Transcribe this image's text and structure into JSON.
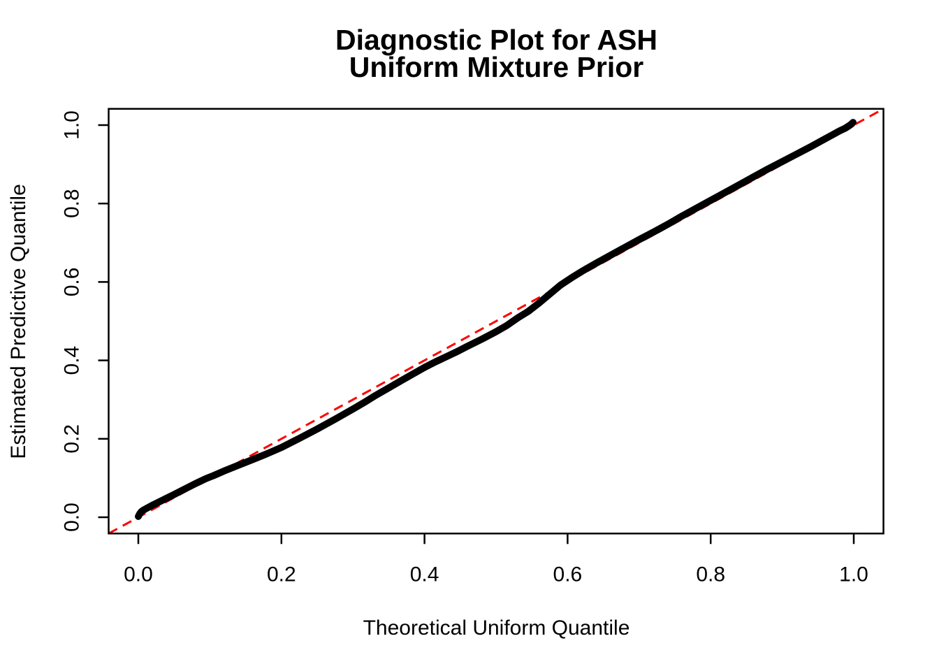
{
  "title": {
    "line1": "Diagnostic Plot for ASH",
    "line2": "Uniform Mixture Prior"
  },
  "colors": {
    "background": "#ffffff",
    "curve": "#000000",
    "reference_line": "#ff0000",
    "axis": "#000000",
    "text": "#000000"
  },
  "axes": {
    "x": {
      "label": "Theoretical Uniform Quantile",
      "ticks": [
        0.0,
        0.2,
        0.4,
        0.6,
        0.8,
        1.0
      ],
      "tick_labels": [
        "0.0",
        "0.2",
        "0.4",
        "0.6",
        "0.8",
        "1.0"
      ],
      "range": [
        -0.0415,
        1.0415
      ]
    },
    "y": {
      "label": "Estimated Predictive Quantile",
      "ticks": [
        0.0,
        0.2,
        0.4,
        0.6,
        0.8,
        1.0
      ],
      "tick_labels": [
        "0.0",
        "0.2",
        "0.4",
        "0.6",
        "0.8",
        "1.0"
      ],
      "range": [
        -0.0415,
        1.0415
      ]
    }
  },
  "chart_data": {
    "type": "line",
    "title": "Diagnostic Plot for ASH\nUniform Mixture Prior",
    "xlabel": "Theoretical Uniform Quantile",
    "ylabel": "Estimated Predictive Quantile",
    "xlim": [
      0,
      1
    ],
    "ylim": [
      0,
      1
    ],
    "grid": false,
    "legend": "none",
    "series": [
      {
        "name": "estimated-predictive-quantiles",
        "style": "thick-black-point-curve",
        "color": "#000000",
        "points": [
          [
            0.0,
            0.002
          ],
          [
            0.002,
            0.009
          ],
          [
            0.004,
            0.014
          ],
          [
            0.007,
            0.018
          ],
          [
            0.01,
            0.021
          ],
          [
            0.015,
            0.026
          ],
          [
            0.02,
            0.031
          ],
          [
            0.03,
            0.04
          ],
          [
            0.04,
            0.049
          ],
          [
            0.05,
            0.058
          ],
          [
            0.065,
            0.072
          ],
          [
            0.08,
            0.086
          ],
          [
            0.095,
            0.099
          ],
          [
            0.105,
            0.106
          ],
          [
            0.12,
            0.118
          ],
          [
            0.135,
            0.129
          ],
          [
            0.15,
            0.14
          ],
          [
            0.165,
            0.151
          ],
          [
            0.18,
            0.162
          ],
          [
            0.2,
            0.178
          ],
          [
            0.225,
            0.201
          ],
          [
            0.25,
            0.225
          ],
          [
            0.275,
            0.25
          ],
          [
            0.3,
            0.276
          ],
          [
            0.315,
            0.292
          ],
          [
            0.33,
            0.309
          ],
          [
            0.35,
            0.33
          ],
          [
            0.37,
            0.351
          ],
          [
            0.4,
            0.382
          ],
          [
            0.415,
            0.396
          ],
          [
            0.43,
            0.409
          ],
          [
            0.445,
            0.422
          ],
          [
            0.46,
            0.436
          ],
          [
            0.48,
            0.454
          ],
          [
            0.5,
            0.473
          ],
          [
            0.515,
            0.489
          ],
          [
            0.53,
            0.508
          ],
          [
            0.545,
            0.525
          ],
          [
            0.56,
            0.546
          ],
          [
            0.575,
            0.569
          ],
          [
            0.59,
            0.592
          ],
          [
            0.605,
            0.61
          ],
          [
            0.62,
            0.627
          ],
          [
            0.64,
            0.648
          ],
          [
            0.66,
            0.668
          ],
          [
            0.68,
            0.688
          ],
          [
            0.7,
            0.708
          ],
          [
            0.72,
            0.727
          ],
          [
            0.74,
            0.747
          ],
          [
            0.76,
            0.768
          ],
          [
            0.78,
            0.788
          ],
          [
            0.8,
            0.808
          ],
          [
            0.82,
            0.828
          ],
          [
            0.84,
            0.848
          ],
          [
            0.86,
            0.868
          ],
          [
            0.88,
            0.888
          ],
          [
            0.9,
            0.907
          ],
          [
            0.92,
            0.926
          ],
          [
            0.94,
            0.945
          ],
          [
            0.955,
            0.96
          ],
          [
            0.97,
            0.975
          ],
          [
            0.98,
            0.985
          ],
          [
            0.988,
            0.992
          ],
          [
            0.994,
            0.999
          ],
          [
            0.997,
            1.003
          ],
          [
            0.999,
            1.007
          ]
        ]
      },
      {
        "name": "identity-reference-line",
        "style": "red-dashed",
        "color": "#ff0000",
        "points": [
          [
            0,
            0
          ],
          [
            1,
            1
          ]
        ]
      }
    ]
  }
}
